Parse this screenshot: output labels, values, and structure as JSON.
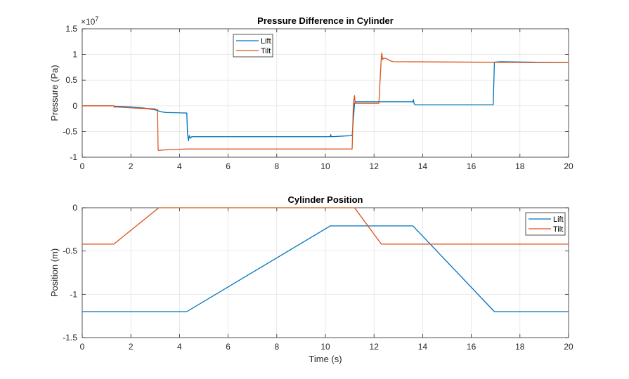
{
  "colors": {
    "lift": "#0072BD",
    "tilt": "#D95319"
  },
  "chart_data": [
    {
      "type": "line",
      "title": "Pressure Difference in Cylinder",
      "xlabel": "",
      "ylabel": "Pressure (Pa)",
      "xlim": [
        0,
        20
      ],
      "ylim": [
        -1.0,
        1.5
      ],
      "y_exponent_label": "×10",
      "y_exponent_power": "7",
      "xticks": [
        0,
        2,
        4,
        6,
        8,
        10,
        12,
        14,
        16,
        18,
        20
      ],
      "xtick_labels": [
        "0",
        "2",
        "4",
        "6",
        "8",
        "10",
        "12",
        "14",
        "16",
        "18",
        "20"
      ],
      "yticks": [
        -1.0,
        -0.5,
        0,
        0.5,
        1.0,
        1.5
      ],
      "ytick_labels": [
        "-1",
        "-0.5",
        "0",
        "0.5",
        "1",
        "1.5"
      ],
      "grid": true,
      "legend_position": "top-center",
      "series": [
        {
          "name": "Lift",
          "x": [
            0,
            1.3,
            1.32,
            1.33,
            2.0,
            2.5,
            3.0,
            3.3,
            3.45,
            4.3,
            4.33,
            4.37,
            4.4,
            4.45,
            4.5,
            10.2,
            10.22,
            10.24,
            11.1,
            11.2,
            11.25,
            13.6,
            13.62,
            13.65,
            13.7,
            16.9,
            16.93,
            16.95,
            17.2,
            20
          ],
          "y": [
            0,
            0,
            -0.01,
            -0.01,
            -0.02,
            -0.04,
            -0.08,
            -0.12,
            -0.13,
            -0.14,
            -0.55,
            -0.68,
            -0.58,
            -0.63,
            -0.6,
            -0.6,
            -0.56,
            -0.6,
            -0.58,
            0.05,
            0.08,
            0.08,
            0.12,
            0.04,
            0.02,
            0.02,
            0.5,
            0.85,
            0.86,
            0.84
          ]
        },
        {
          "name": "Tilt",
          "x": [
            0,
            1.3,
            1.32,
            1.34,
            2.0,
            3.0,
            3.1,
            3.12,
            3.15,
            3.3,
            4.3,
            10.0,
            11.1,
            11.15,
            11.2,
            11.22,
            11.3,
            12.2,
            12.3,
            12.32,
            12.35,
            12.4,
            12.5,
            12.7,
            12.8,
            20
          ],
          "y": [
            0,
            0,
            -0.03,
            -0.02,
            -0.04,
            -0.06,
            -0.08,
            -0.86,
            -0.87,
            -0.86,
            -0.84,
            -0.84,
            -0.84,
            0.05,
            0.2,
            0.05,
            0.05,
            0.05,
            0.95,
            1.03,
            0.9,
            0.93,
            0.92,
            0.87,
            0.86,
            0.84
          ]
        }
      ]
    },
    {
      "type": "line",
      "title": "Cylinder Position",
      "xlabel": "Time (s)",
      "ylabel": "Position (m)",
      "xlim": [
        0,
        20
      ],
      "ylim": [
        -1.5,
        0
      ],
      "xticks": [
        0,
        2,
        4,
        6,
        8,
        10,
        12,
        14,
        16,
        18,
        20
      ],
      "xtick_labels": [
        "0",
        "2",
        "4",
        "6",
        "8",
        "10",
        "12",
        "14",
        "16",
        "18",
        "20"
      ],
      "yticks": [
        -1.5,
        -1.0,
        -0.5,
        0
      ],
      "ytick_labels": [
        "-1.5",
        "-1",
        "-0.5",
        "0"
      ],
      "grid": true,
      "legend_position": "top-right",
      "series": [
        {
          "name": "Lift",
          "x": [
            0,
            4.3,
            10.2,
            13.6,
            16.95,
            20
          ],
          "y": [
            -1.2,
            -1.2,
            -0.21,
            -0.21,
            -1.2,
            -1.2
          ]
        },
        {
          "name": "Tilt",
          "x": [
            0,
            1.3,
            3.15,
            11.2,
            12.3,
            20
          ],
          "y": [
            -0.42,
            -0.42,
            0,
            0,
            -0.42,
            -0.42
          ]
        }
      ]
    }
  ]
}
